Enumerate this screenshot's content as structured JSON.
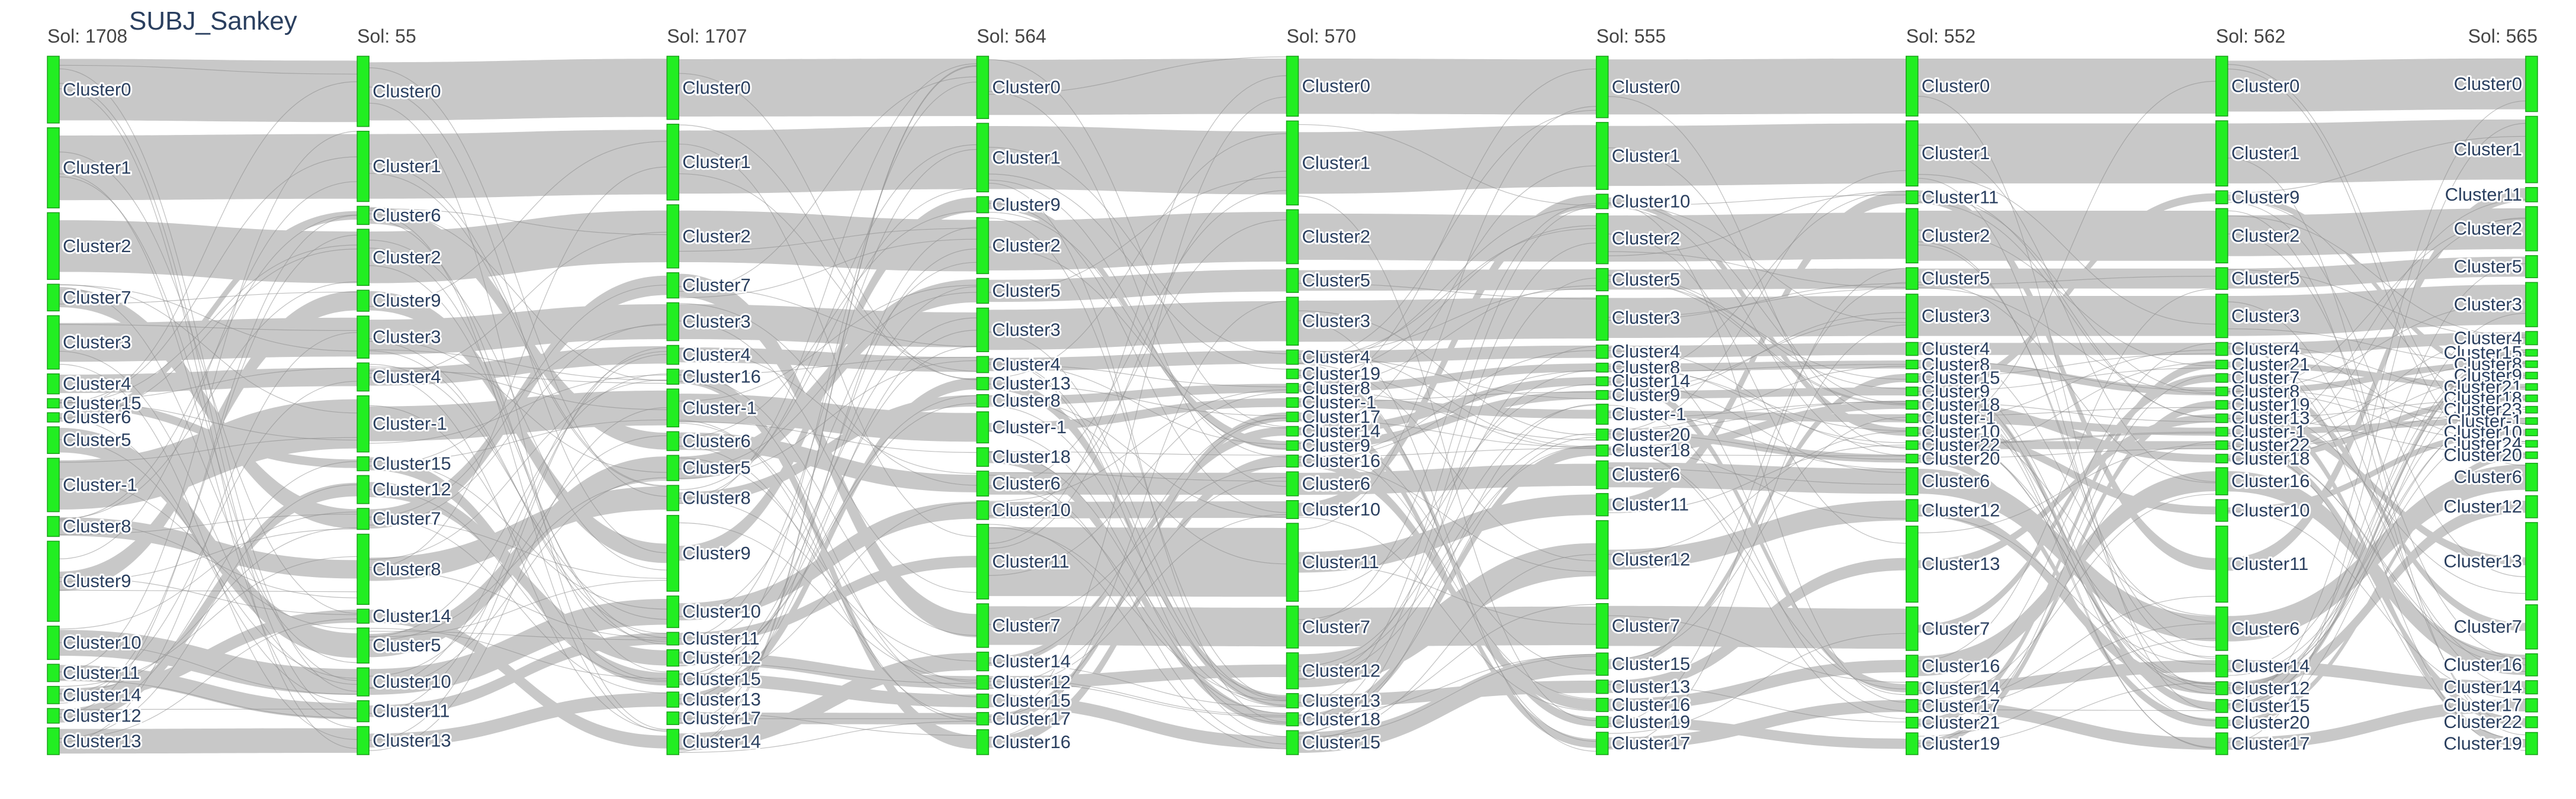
{
  "title": "SUBJ_Sankey",
  "columns": [
    {
      "label": "Sol: 1708",
      "nodes": [
        {
          "name": "Cluster0",
          "size": 5
        },
        {
          "name": "Cluster1",
          "size": 6
        },
        {
          "name": "Cluster2",
          "size": 5
        },
        {
          "name": "Cluster7",
          "size": 2
        },
        {
          "name": "Cluster3",
          "size": 4
        },
        {
          "name": "Cluster4",
          "size": 1.5
        },
        {
          "name": "Cluster15",
          "size": 0.7
        },
        {
          "name": "Cluster6",
          "size": 0.7
        },
        {
          "name": "Cluster5",
          "size": 2
        },
        {
          "name": "Cluster-1",
          "size": 4
        },
        {
          "name": "Cluster8",
          "size": 1.5
        },
        {
          "name": "Cluster9",
          "size": 6
        },
        {
          "name": "Cluster10",
          "size": 2.5
        },
        {
          "name": "Cluster11",
          "size": 1.3
        },
        {
          "name": "Cluster14",
          "size": 1.3
        },
        {
          "name": "Cluster12",
          "size": 1.1
        },
        {
          "name": "Cluster13",
          "size": 2
        }
      ]
    },
    {
      "label": "Sol: 55",
      "nodes": [
        {
          "name": "Cluster0",
          "size": 5
        },
        {
          "name": "Cluster1",
          "size": 5
        },
        {
          "name": "Cluster6",
          "size": 1.3
        },
        {
          "name": "Cluster2",
          "size": 4
        },
        {
          "name": "Cluster9",
          "size": 1.5
        },
        {
          "name": "Cluster3",
          "size": 3
        },
        {
          "name": "Cluster4",
          "size": 2
        },
        {
          "name": "Cluster-1",
          "size": 4
        },
        {
          "name": "Cluster15",
          "size": 1
        },
        {
          "name": "Cluster12",
          "size": 2
        },
        {
          "name": "Cluster7",
          "size": 1.5
        },
        {
          "name": "Cluster8",
          "size": 5
        },
        {
          "name": "Cluster14",
          "size": 1
        },
        {
          "name": "Cluster5",
          "size": 2.5
        },
        {
          "name": "Cluster10",
          "size": 2
        },
        {
          "name": "Cluster11",
          "size": 1.5
        },
        {
          "name": "Cluster13",
          "size": 2
        }
      ]
    },
    {
      "label": "Sol: 1707",
      "nodes": [
        {
          "name": "Cluster0",
          "size": 5
        },
        {
          "name": "Cluster1",
          "size": 6
        },
        {
          "name": "Cluster2",
          "size": 5
        },
        {
          "name": "Cluster7",
          "size": 2
        },
        {
          "name": "Cluster3",
          "size": 3
        },
        {
          "name": "Cluster4",
          "size": 1.5
        },
        {
          "name": "Cluster16",
          "size": 1.2
        },
        {
          "name": "Cluster-1",
          "size": 3
        },
        {
          "name": "Cluster6",
          "size": 1.5
        },
        {
          "name": "Cluster5",
          "size": 2
        },
        {
          "name": "Cluster8",
          "size": 2
        },
        {
          "name": "Cluster9",
          "size": 6
        },
        {
          "name": "Cluster10",
          "size": 2.5
        },
        {
          "name": "Cluster11",
          "size": 1
        },
        {
          "name": "Cluster12",
          "size": 1.3
        },
        {
          "name": "Cluster15",
          "size": 1.3
        },
        {
          "name": "Cluster13",
          "size": 1.2
        },
        {
          "name": "Cluster17",
          "size": 1
        },
        {
          "name": "Cluster14",
          "size": 2
        }
      ]
    },
    {
      "label": "Sol: 564",
      "nodes": [
        {
          "name": "Cluster0",
          "size": 5
        },
        {
          "name": "Cluster1",
          "size": 5.5
        },
        {
          "name": "Cluster9",
          "size": 1.3
        },
        {
          "name": "Cluster2",
          "size": 4.5
        },
        {
          "name": "Cluster5",
          "size": 2
        },
        {
          "name": "Cluster3",
          "size": 3.5
        },
        {
          "name": "Cluster4",
          "size": 1.3
        },
        {
          "name": "Cluster13",
          "size": 1
        },
        {
          "name": "Cluster8",
          "size": 1
        },
        {
          "name": "Cluster-1",
          "size": 2.5
        },
        {
          "name": "Cluster18",
          "size": 1.5
        },
        {
          "name": "Cluster6",
          "size": 2
        },
        {
          "name": "Cluster10",
          "size": 1.5
        },
        {
          "name": "Cluster11",
          "size": 6
        },
        {
          "name": "Cluster7",
          "size": 3.5
        },
        {
          "name": "Cluster14",
          "size": 1.5
        },
        {
          "name": "Cluster12",
          "size": 1.1
        },
        {
          "name": "Cluster15",
          "size": 1.1
        },
        {
          "name": "Cluster17",
          "size": 1
        },
        {
          "name": "Cluster16",
          "size": 2
        }
      ]
    },
    {
      "label": "Sol: 570",
      "nodes": [
        {
          "name": "Cluster0",
          "size": 5
        },
        {
          "name": "Cluster1",
          "size": 7
        },
        {
          "name": "Cluster2",
          "size": 4.5
        },
        {
          "name": "Cluster5",
          "size": 2
        },
        {
          "name": "Cluster3",
          "size": 4
        },
        {
          "name": "Cluster4",
          "size": 1.2
        },
        {
          "name": "Cluster19",
          "size": 0.8
        },
        {
          "name": "Cluster8",
          "size": 0.8
        },
        {
          "name": "Cluster-1",
          "size": 0.8
        },
        {
          "name": "Cluster17",
          "size": 0.8
        },
        {
          "name": "Cluster14",
          "size": 0.8
        },
        {
          "name": "Cluster9",
          "size": 0.8
        },
        {
          "name": "Cluster16",
          "size": 1
        },
        {
          "name": "Cluster6",
          "size": 2
        },
        {
          "name": "Cluster10",
          "size": 1.5
        },
        {
          "name": "Cluster11",
          "size": 6.5
        },
        {
          "name": "Cluster7",
          "size": 3.5
        },
        {
          "name": "Cluster12",
          "size": 3
        },
        {
          "name": "Cluster13",
          "size": 1.2
        },
        {
          "name": "Cluster18",
          "size": 1.1
        },
        {
          "name": "Cluster15",
          "size": 2
        }
      ]
    },
    {
      "label": "Sol: 555",
      "nodes": [
        {
          "name": "Cluster0",
          "size": 5.5
        },
        {
          "name": "Cluster1",
          "size": 6
        },
        {
          "name": "Cluster10",
          "size": 1.3
        },
        {
          "name": "Cluster2",
          "size": 4.5
        },
        {
          "name": "Cluster5",
          "size": 2
        },
        {
          "name": "Cluster3",
          "size": 4
        },
        {
          "name": "Cluster4",
          "size": 1.2
        },
        {
          "name": "Cluster8",
          "size": 0.8
        },
        {
          "name": "Cluster14",
          "size": 0.8
        },
        {
          "name": "Cluster9",
          "size": 0.8
        },
        {
          "name": "Cluster-1",
          "size": 1.8
        },
        {
          "name": "Cluster20",
          "size": 1
        },
        {
          "name": "Cluster18",
          "size": 1
        },
        {
          "name": "Cluster6",
          "size": 2.5
        },
        {
          "name": "Cluster11",
          "size": 2
        },
        {
          "name": "Cluster12",
          "size": 7
        },
        {
          "name": "Cluster7",
          "size": 4
        },
        {
          "name": "Cluster15",
          "size": 2
        },
        {
          "name": "Cluster13",
          "size": 1.2
        },
        {
          "name": "Cluster16",
          "size": 1.2
        },
        {
          "name": "Cluster19",
          "size": 1
        },
        {
          "name": "Cluster17",
          "size": 2
        }
      ]
    },
    {
      "label": "Sol: 552",
      "nodes": [
        {
          "name": "Cluster0",
          "size": 5.5
        },
        {
          "name": "Cluster1",
          "size": 6
        },
        {
          "name": "Cluster11",
          "size": 1.2
        },
        {
          "name": "Cluster2",
          "size": 5
        },
        {
          "name": "Cluster5",
          "size": 2
        },
        {
          "name": "Cluster3",
          "size": 4
        },
        {
          "name": "Cluster4",
          "size": 1.2
        },
        {
          "name": "Cluster8",
          "size": 0.8
        },
        {
          "name": "Cluster15",
          "size": 0.8
        },
        {
          "name": "Cluster9",
          "size": 0.8
        },
        {
          "name": "Cluster18",
          "size": 0.8
        },
        {
          "name": "Cluster-1",
          "size": 0.8
        },
        {
          "name": "Cluster10",
          "size": 0.8
        },
        {
          "name": "Cluster22",
          "size": 0.8
        },
        {
          "name": "Cluster20",
          "size": 0.8
        },
        {
          "name": "Cluster6",
          "size": 2.5
        },
        {
          "name": "Cluster12",
          "size": 2
        },
        {
          "name": "Cluster13",
          "size": 7
        },
        {
          "name": "Cluster7",
          "size": 4
        },
        {
          "name": "Cluster16",
          "size": 2
        },
        {
          "name": "Cluster14",
          "size": 1.2
        },
        {
          "name": "Cluster17",
          "size": 1.2
        },
        {
          "name": "Cluster21",
          "size": 1
        },
        {
          "name": "Cluster19",
          "size": 2
        }
      ]
    },
    {
      "label": "Sol: 562",
      "nodes": [
        {
          "name": "Cluster0",
          "size": 5.5
        },
        {
          "name": "Cluster1",
          "size": 6
        },
        {
          "name": "Cluster9",
          "size": 1.2
        },
        {
          "name": "Cluster2",
          "size": 5
        },
        {
          "name": "Cluster5",
          "size": 2
        },
        {
          "name": "Cluster3",
          "size": 4
        },
        {
          "name": "Cluster4",
          "size": 1.2
        },
        {
          "name": "Cluster21",
          "size": 0.8
        },
        {
          "name": "Cluster7",
          "size": 0.8
        },
        {
          "name": "Cluster8",
          "size": 0.8
        },
        {
          "name": "Cluster19",
          "size": 0.8
        },
        {
          "name": "Cluster13",
          "size": 0.8
        },
        {
          "name": "Cluster-1",
          "size": 0.8
        },
        {
          "name": "Cluster22",
          "size": 0.8
        },
        {
          "name": "Cluster18",
          "size": 0.8
        },
        {
          "name": "Cluster16",
          "size": 2.5
        },
        {
          "name": "Cluster10",
          "size": 2
        },
        {
          "name": "Cluster11",
          "size": 7
        },
        {
          "name": "Cluster6",
          "size": 4
        },
        {
          "name": "Cluster14",
          "size": 2
        },
        {
          "name": "Cluster12",
          "size": 1.2
        },
        {
          "name": "Cluster15",
          "size": 1.2
        },
        {
          "name": "Cluster20",
          "size": 1
        },
        {
          "name": "Cluster17",
          "size": 2
        }
      ]
    },
    {
      "label": "Sol: 565",
      "nodes": [
        {
          "name": "Cluster0",
          "size": 5
        },
        {
          "name": "Cluster1",
          "size": 6
        },
        {
          "name": "Cluster11",
          "size": 1.3
        },
        {
          "name": "Cluster2",
          "size": 4
        },
        {
          "name": "Cluster5",
          "size": 2
        },
        {
          "name": "Cluster3",
          "size": 4
        },
        {
          "name": "Cluster4",
          "size": 1.2
        },
        {
          "name": "Cluster15",
          "size": 0.6
        },
        {
          "name": "Cluster8",
          "size": 0.6
        },
        {
          "name": "Cluster9",
          "size": 0.6
        },
        {
          "name": "Cluster21",
          "size": 0.6
        },
        {
          "name": "Cluster18",
          "size": 0.6
        },
        {
          "name": "Cluster23",
          "size": 0.6
        },
        {
          "name": "Cluster-1",
          "size": 0.6
        },
        {
          "name": "Cluster10",
          "size": 0.6
        },
        {
          "name": "Cluster24",
          "size": 0.6
        },
        {
          "name": "Cluster20",
          "size": 0.6
        },
        {
          "name": "Cluster6",
          "size": 2.5
        },
        {
          "name": "Cluster12",
          "size": 2
        },
        {
          "name": "Cluster13",
          "size": 7
        },
        {
          "name": "Cluster7",
          "size": 4
        },
        {
          "name": "Cluster16",
          "size": 2
        },
        {
          "name": "Cluster14",
          "size": 1.2
        },
        {
          "name": "Cluster17",
          "size": 1.2
        },
        {
          "name": "Cluster22",
          "size": 1
        },
        {
          "name": "Cluster19",
          "size": 2
        }
      ]
    }
  ],
  "colors": {
    "node": "#22ee22",
    "link": "#c8c8c8",
    "thread": "#8a8a8a",
    "text": "#2a3f5f"
  }
}
